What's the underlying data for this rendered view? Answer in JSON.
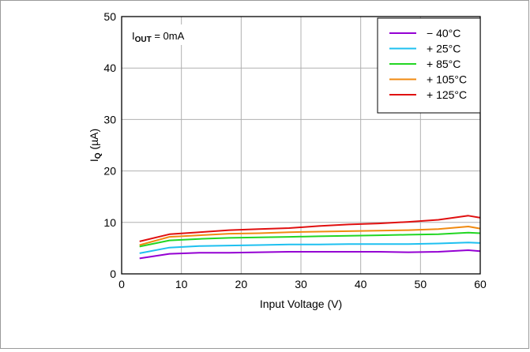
{
  "chart_data": {
    "type": "line",
    "annotation": {
      "main": "I",
      "sub": "OUT",
      "suffix": " = 0mA"
    },
    "xlabel": "Input Voltage (V)",
    "ylabel": {
      "main": "I",
      "sub": "Q",
      "suffix": " (µA)"
    },
    "xlim": [
      0,
      60
    ],
    "ylim": [
      0,
      50
    ],
    "xticks": [
      0,
      10,
      20,
      30,
      40,
      50,
      60
    ],
    "yticks": [
      0,
      10,
      20,
      30,
      40,
      50
    ],
    "grid": true,
    "legend_position": "top-right",
    "series": [
      {
        "name": "− 40°C",
        "color": "#9400d3",
        "x": [
          3,
          8,
          13,
          18,
          23,
          28,
          33,
          38,
          43,
          48,
          53,
          58,
          60
        ],
        "y": [
          3.0,
          3.9,
          4.1,
          4.1,
          4.2,
          4.3,
          4.3,
          4.3,
          4.3,
          4.2,
          4.3,
          4.6,
          4.4
        ]
      },
      {
        "name": "+ 25°C",
        "color": "#1ec0f0",
        "x": [
          3,
          8,
          13,
          18,
          23,
          28,
          33,
          38,
          43,
          48,
          53,
          58,
          60
        ],
        "y": [
          4.0,
          5.1,
          5.4,
          5.5,
          5.6,
          5.7,
          5.7,
          5.8,
          5.8,
          5.8,
          5.9,
          6.1,
          6.0
        ]
      },
      {
        "name": "+ 85°C",
        "color": "#22d622",
        "x": [
          3,
          8,
          13,
          18,
          23,
          28,
          33,
          38,
          43,
          48,
          53,
          58,
          60
        ],
        "y": [
          5.3,
          6.5,
          6.8,
          7.0,
          7.1,
          7.2,
          7.3,
          7.4,
          7.5,
          7.6,
          7.7,
          8.0,
          7.9
        ]
      },
      {
        "name": "+ 105°C",
        "color": "#f08a10",
        "x": [
          3,
          8,
          13,
          18,
          23,
          28,
          33,
          38,
          43,
          48,
          53,
          58,
          60
        ],
        "y": [
          5.6,
          7.2,
          7.5,
          7.8,
          7.9,
          8.1,
          8.2,
          8.3,
          8.4,
          8.5,
          8.7,
          9.2,
          8.8
        ]
      },
      {
        "name": "+ 125°C",
        "color": "#e01010",
        "x": [
          3,
          8,
          13,
          18,
          23,
          28,
          33,
          38,
          43,
          48,
          53,
          58,
          60
        ],
        "y": [
          6.3,
          7.7,
          8.1,
          8.5,
          8.7,
          8.9,
          9.3,
          9.6,
          9.8,
          10.1,
          10.5,
          11.3,
          10.9
        ]
      }
    ]
  }
}
